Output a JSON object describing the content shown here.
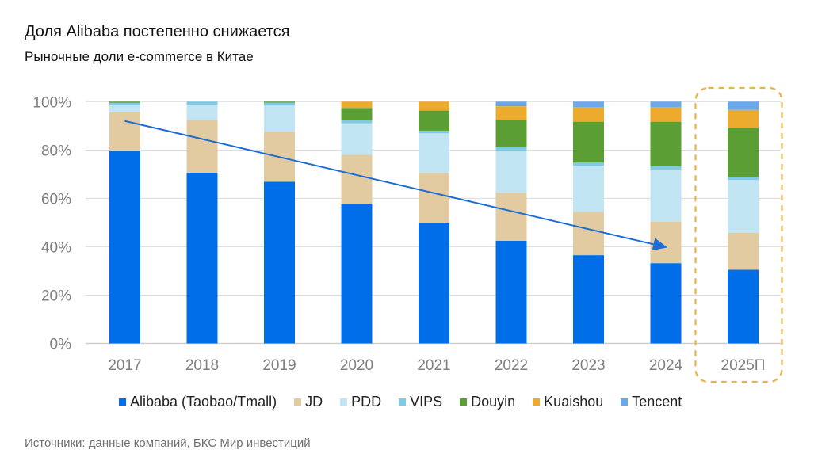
{
  "header": {
    "title": "Доля Alibaba постепенно снижается",
    "subtitle": "Рыночные доли e-commerce в Китае"
  },
  "footer": {
    "source": "Источники: данные компаний, БКС Мир инвестиций"
  },
  "chart_data": {
    "type": "bar",
    "stacked": true,
    "title": "Доля Alibaba постепенно снижается",
    "subtitle": "Рыночные доли e-commerce в Китае",
    "xlabel": "",
    "ylabel": "",
    "ylim": [
      0,
      100
    ],
    "yticks": [
      "0%",
      "20%",
      "40%",
      "60%",
      "80%",
      "100%"
    ],
    "ytick_values": [
      0,
      20,
      40,
      60,
      80,
      100
    ],
    "grid": true,
    "legend_position": "bottom",
    "categories": [
      "2017",
      "2018",
      "2019",
      "2020",
      "2021",
      "2022",
      "2023",
      "2024",
      "2025П"
    ],
    "series": [
      {
        "name": "Alibaba (Taobao/Tmall)",
        "color": "#006ee8",
        "values": [
          79.7,
          70.6,
          66.9,
          57.5,
          49.7,
          42.5,
          36.5,
          33.2,
          30.5
        ]
      },
      {
        "name": "JD",
        "color": "#e2cba0",
        "values": [
          15.9,
          21.7,
          20.7,
          20.5,
          20.8,
          19.8,
          17.9,
          17.1,
          15.2
        ]
      },
      {
        "name": "PDD",
        "color": "#c2e5f4",
        "values": [
          2.9,
          6.4,
          10.8,
          13.0,
          16.4,
          17.4,
          19.1,
          21.6,
          21.9
        ]
      },
      {
        "name": "VIPS",
        "color": "#7ecbe6",
        "values": [
          1.0,
          1.3,
          1.2,
          1.2,
          1.1,
          1.5,
          1.3,
          1.3,
          1.3
        ]
      },
      {
        "name": "Douyin",
        "color": "#5a9e34",
        "values": [
          0.5,
          0.0,
          0.4,
          5.2,
          8.3,
          11.2,
          16.9,
          18.5,
          20.3
        ]
      },
      {
        "name": "Kuaishou",
        "color": "#ecab2c",
        "values": [
          0.0,
          0.0,
          0.0,
          2.6,
          3.7,
          5.7,
          6.0,
          6.0,
          7.4
        ]
      },
      {
        "name": "Tencent",
        "color": "#6aa8ec",
        "values": [
          0.0,
          0.0,
          0.0,
          0.0,
          0.0,
          1.9,
          2.3,
          2.3,
          3.4
        ]
      }
    ],
    "annotations": [
      {
        "type": "arrow",
        "description": "Тренд снижения доли Alibaba",
        "from": {
          "category": "2017",
          "value": 92
        },
        "to": {
          "category": "2024",
          "value": 40
        },
        "color": "#1a6dd6"
      },
      {
        "type": "highlight-box",
        "description": "Прогноз",
        "category": "2025П",
        "color": "#e6b54a",
        "style": "dashed"
      }
    ]
  }
}
